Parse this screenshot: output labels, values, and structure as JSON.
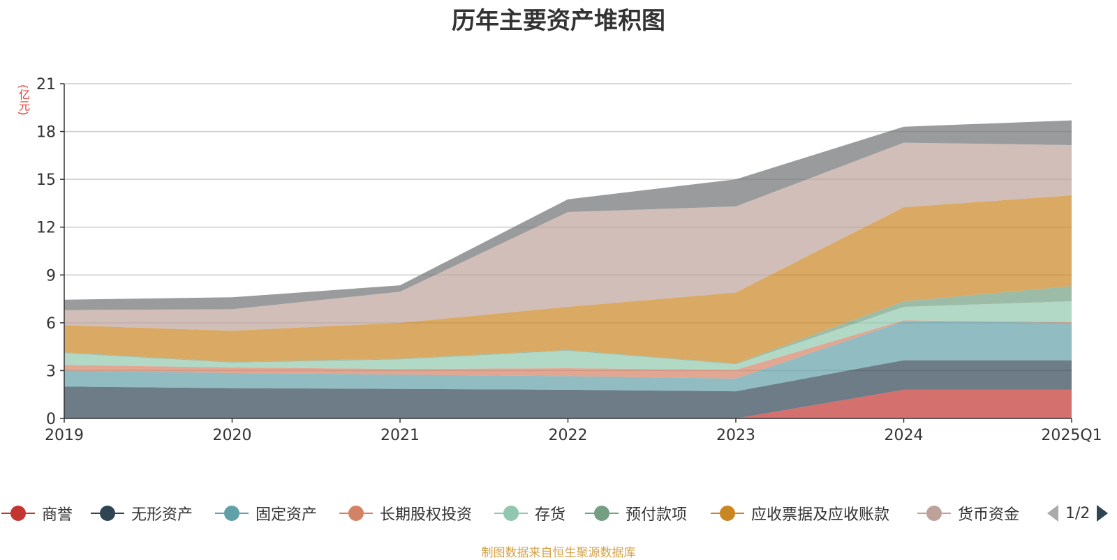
{
  "title": "历年主要资产堆积图",
  "unit_label": "(亿元)",
  "source": "制图数据来自恒生聚源数据库",
  "pager": {
    "text": "1/2"
  },
  "chart_data": {
    "type": "area",
    "stacked": true,
    "title": "历年主要资产堆积图",
    "ylabel": "(亿元)",
    "ylim": [
      0,
      21
    ],
    "yticks": [
      0,
      3,
      6,
      9,
      12,
      15,
      18,
      21
    ],
    "grid": true,
    "legend_position": "bottom",
    "categories": [
      "2019",
      "2020",
      "2021",
      "2022",
      "2023",
      "2024",
      "2025Q1"
    ],
    "series": [
      {
        "name": "商誉",
        "color": "#c23531",
        "values": [
          0,
          0,
          0,
          0,
          0,
          1.8,
          1.8
        ]
      },
      {
        "name": "无形资产",
        "color": "#2f4554",
        "values": [
          2.0,
          1.9,
          1.85,
          1.8,
          1.7,
          1.85,
          1.85
        ]
      },
      {
        "name": "固定资产",
        "color": "#61a0a8",
        "values": [
          1.0,
          0.95,
          0.9,
          0.85,
          0.8,
          2.45,
          2.35
        ]
      },
      {
        "name": "长期股权投资",
        "color": "#d48265",
        "values": [
          0.35,
          0.35,
          0.35,
          0.5,
          0.55,
          0.05,
          0.05
        ]
      },
      {
        "name": "存货",
        "color": "#91c7ae",
        "values": [
          0.75,
          0.3,
          0.6,
          1.1,
          0.35,
          0.85,
          1.3
        ]
      },
      {
        "name": "预付款项",
        "color": "#749f83",
        "values": [
          0.05,
          0.05,
          0.05,
          0.05,
          0.05,
          0.35,
          0.95
        ]
      },
      {
        "name": "应收票据及应收账款",
        "color": "#ca8622",
        "values": [
          1.7,
          1.95,
          2.25,
          2.7,
          4.45,
          5.9,
          5.7
        ]
      },
      {
        "name": "货币资金",
        "color": "#bda29a",
        "values": [
          0.95,
          1.35,
          1.95,
          5.95,
          5.4,
          4.05,
          3.15
        ]
      },
      {
        "name": "",
        "color": "#6e7074",
        "values": [
          0.65,
          0.75,
          0.4,
          0.8,
          1.7,
          1.0,
          1.55
        ]
      }
    ]
  }
}
